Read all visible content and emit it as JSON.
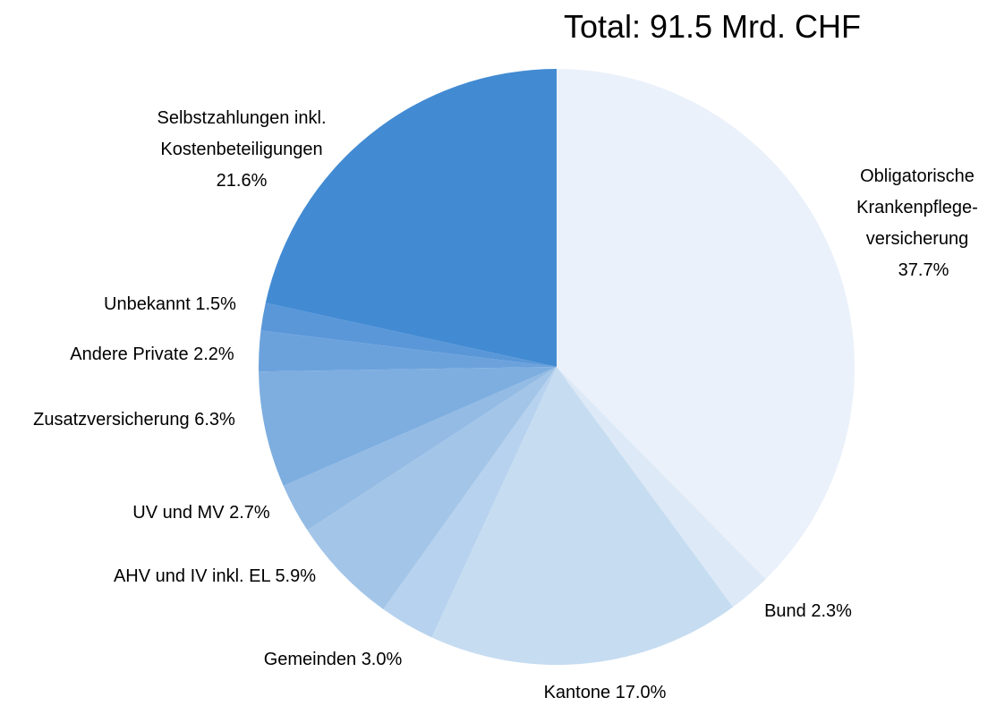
{
  "chart_data": {
    "type": "pie",
    "title": "Total: 91.5 Mrd. CHF",
    "categories": [
      [
        "Obligatorische",
        "Krankenpflege-",
        "versicherung"
      ],
      [
        "Bund"
      ],
      [
        "Kantone"
      ],
      [
        "Gemeinden"
      ],
      [
        "AHV und IV inkl. EL"
      ],
      [
        "UV und MV"
      ],
      [
        "Zusatzversicherung"
      ],
      [
        "Andere Private"
      ],
      [
        "Unbekannt"
      ],
      [
        "Selbstzahlungen inkl.",
        "Kostenbeteiligungen"
      ]
    ],
    "values": [
      37.7,
      2.3,
      17.0,
      3.0,
      5.9,
      2.7,
      6.3,
      2.2,
      1.5,
      21.6
    ],
    "value_labels": [
      "37.7%",
      "2.3%",
      "17.0%",
      "3.0%",
      "5.9%",
      "2.7%",
      "6.3%",
      "2.2%",
      "1.5%",
      "21.6%"
    ],
    "colors": [
      "#eaf1fa",
      "#dde9f6",
      "#c6dcf1",
      "#b7d2ee",
      "#a3c5e8",
      "#93bbe4",
      "#7eaee0",
      "#6ca2dc",
      "#5a97d8",
      "#428bd3"
    ]
  }
}
